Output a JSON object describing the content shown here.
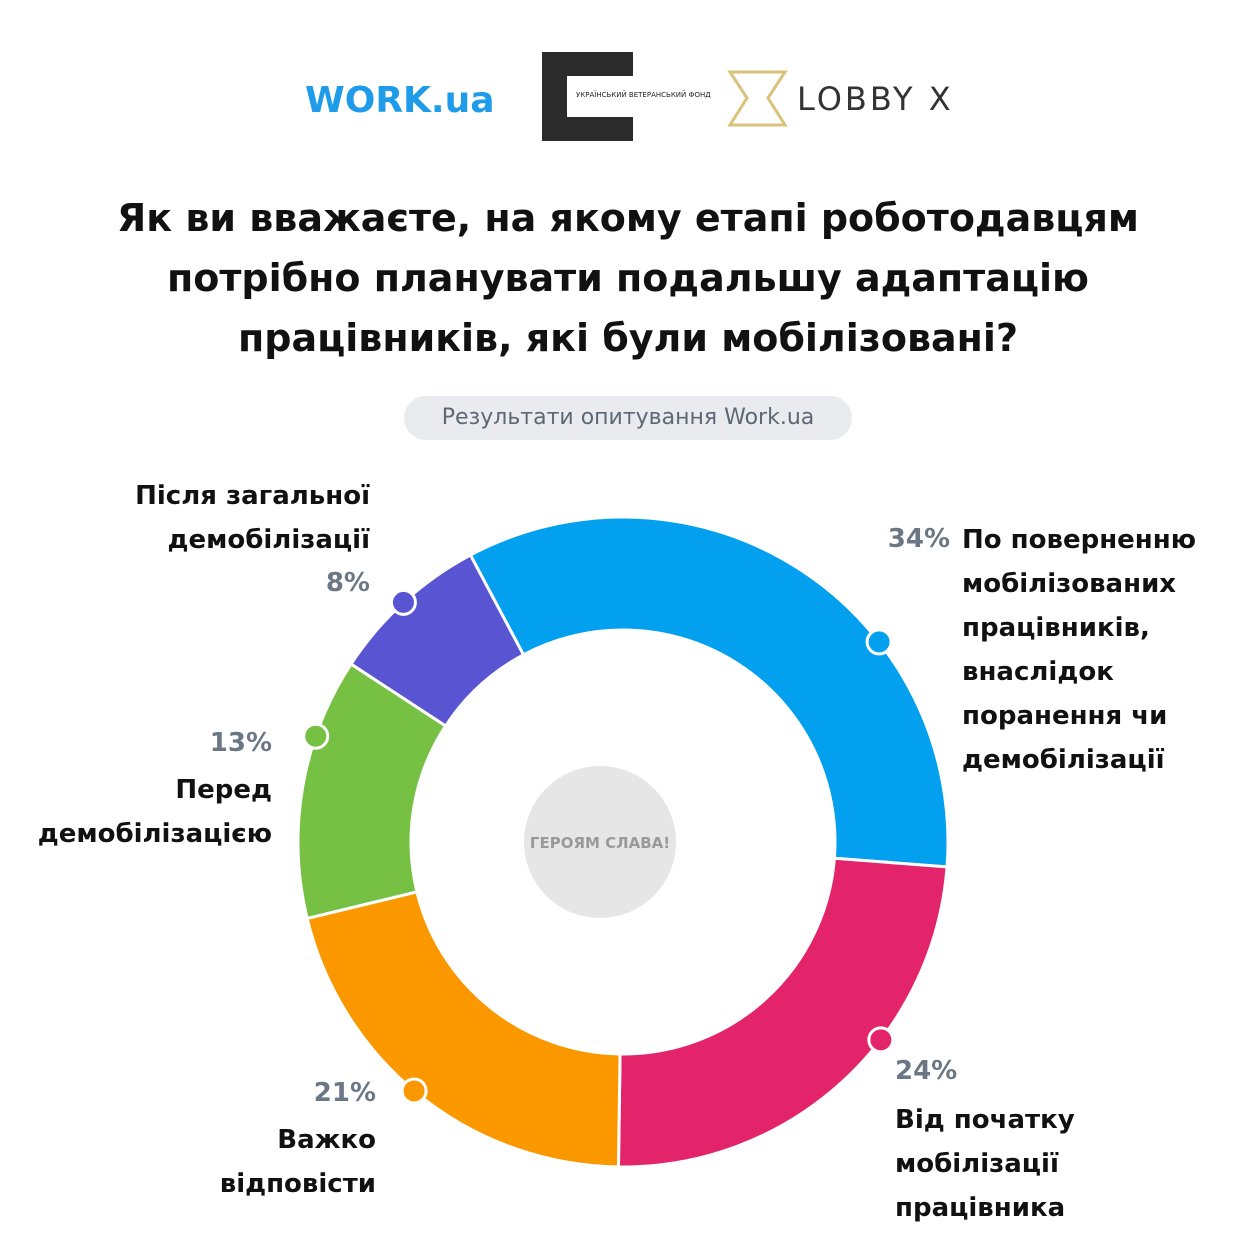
{
  "logos": {
    "work": "WORK.ua",
    "fund": "УКРАЇНСЬКИЙ ВЕТЕРАНСЬКИЙ ФОНД",
    "lobby": "LOBBY X"
  },
  "chart_data": {
    "type": "donut",
    "title": "Як ви вважаєте, на якому етапі роботодавцям\nпотрібно планувати подальшу адаптацію\nпрацівників, які були мобілізовані?",
    "subtitle": "Результати опитування Work.ua",
    "center_label": "ГЕРОЯМ СЛАВА!",
    "categories": [
      "По поверненню\nмобілізованих\nпрацівників,\nвнаслідок\nпоранення чи\nдемобілізації",
      "Від початку\nмобілізації\nпрацівника",
      "Важко\nвідповісти",
      "Перед\nдемобілізацією",
      "Після загальної\nдемобілізації"
    ],
    "values": [
      34,
      24,
      21,
      13,
      8
    ],
    "value_labels": [
      "34%",
      "24%",
      "21%",
      "13%",
      "8%"
    ],
    "colors": [
      "#03a0ef",
      "#e3246b",
      "#fb9800",
      "#76c143",
      "#5955d2"
    ]
  }
}
